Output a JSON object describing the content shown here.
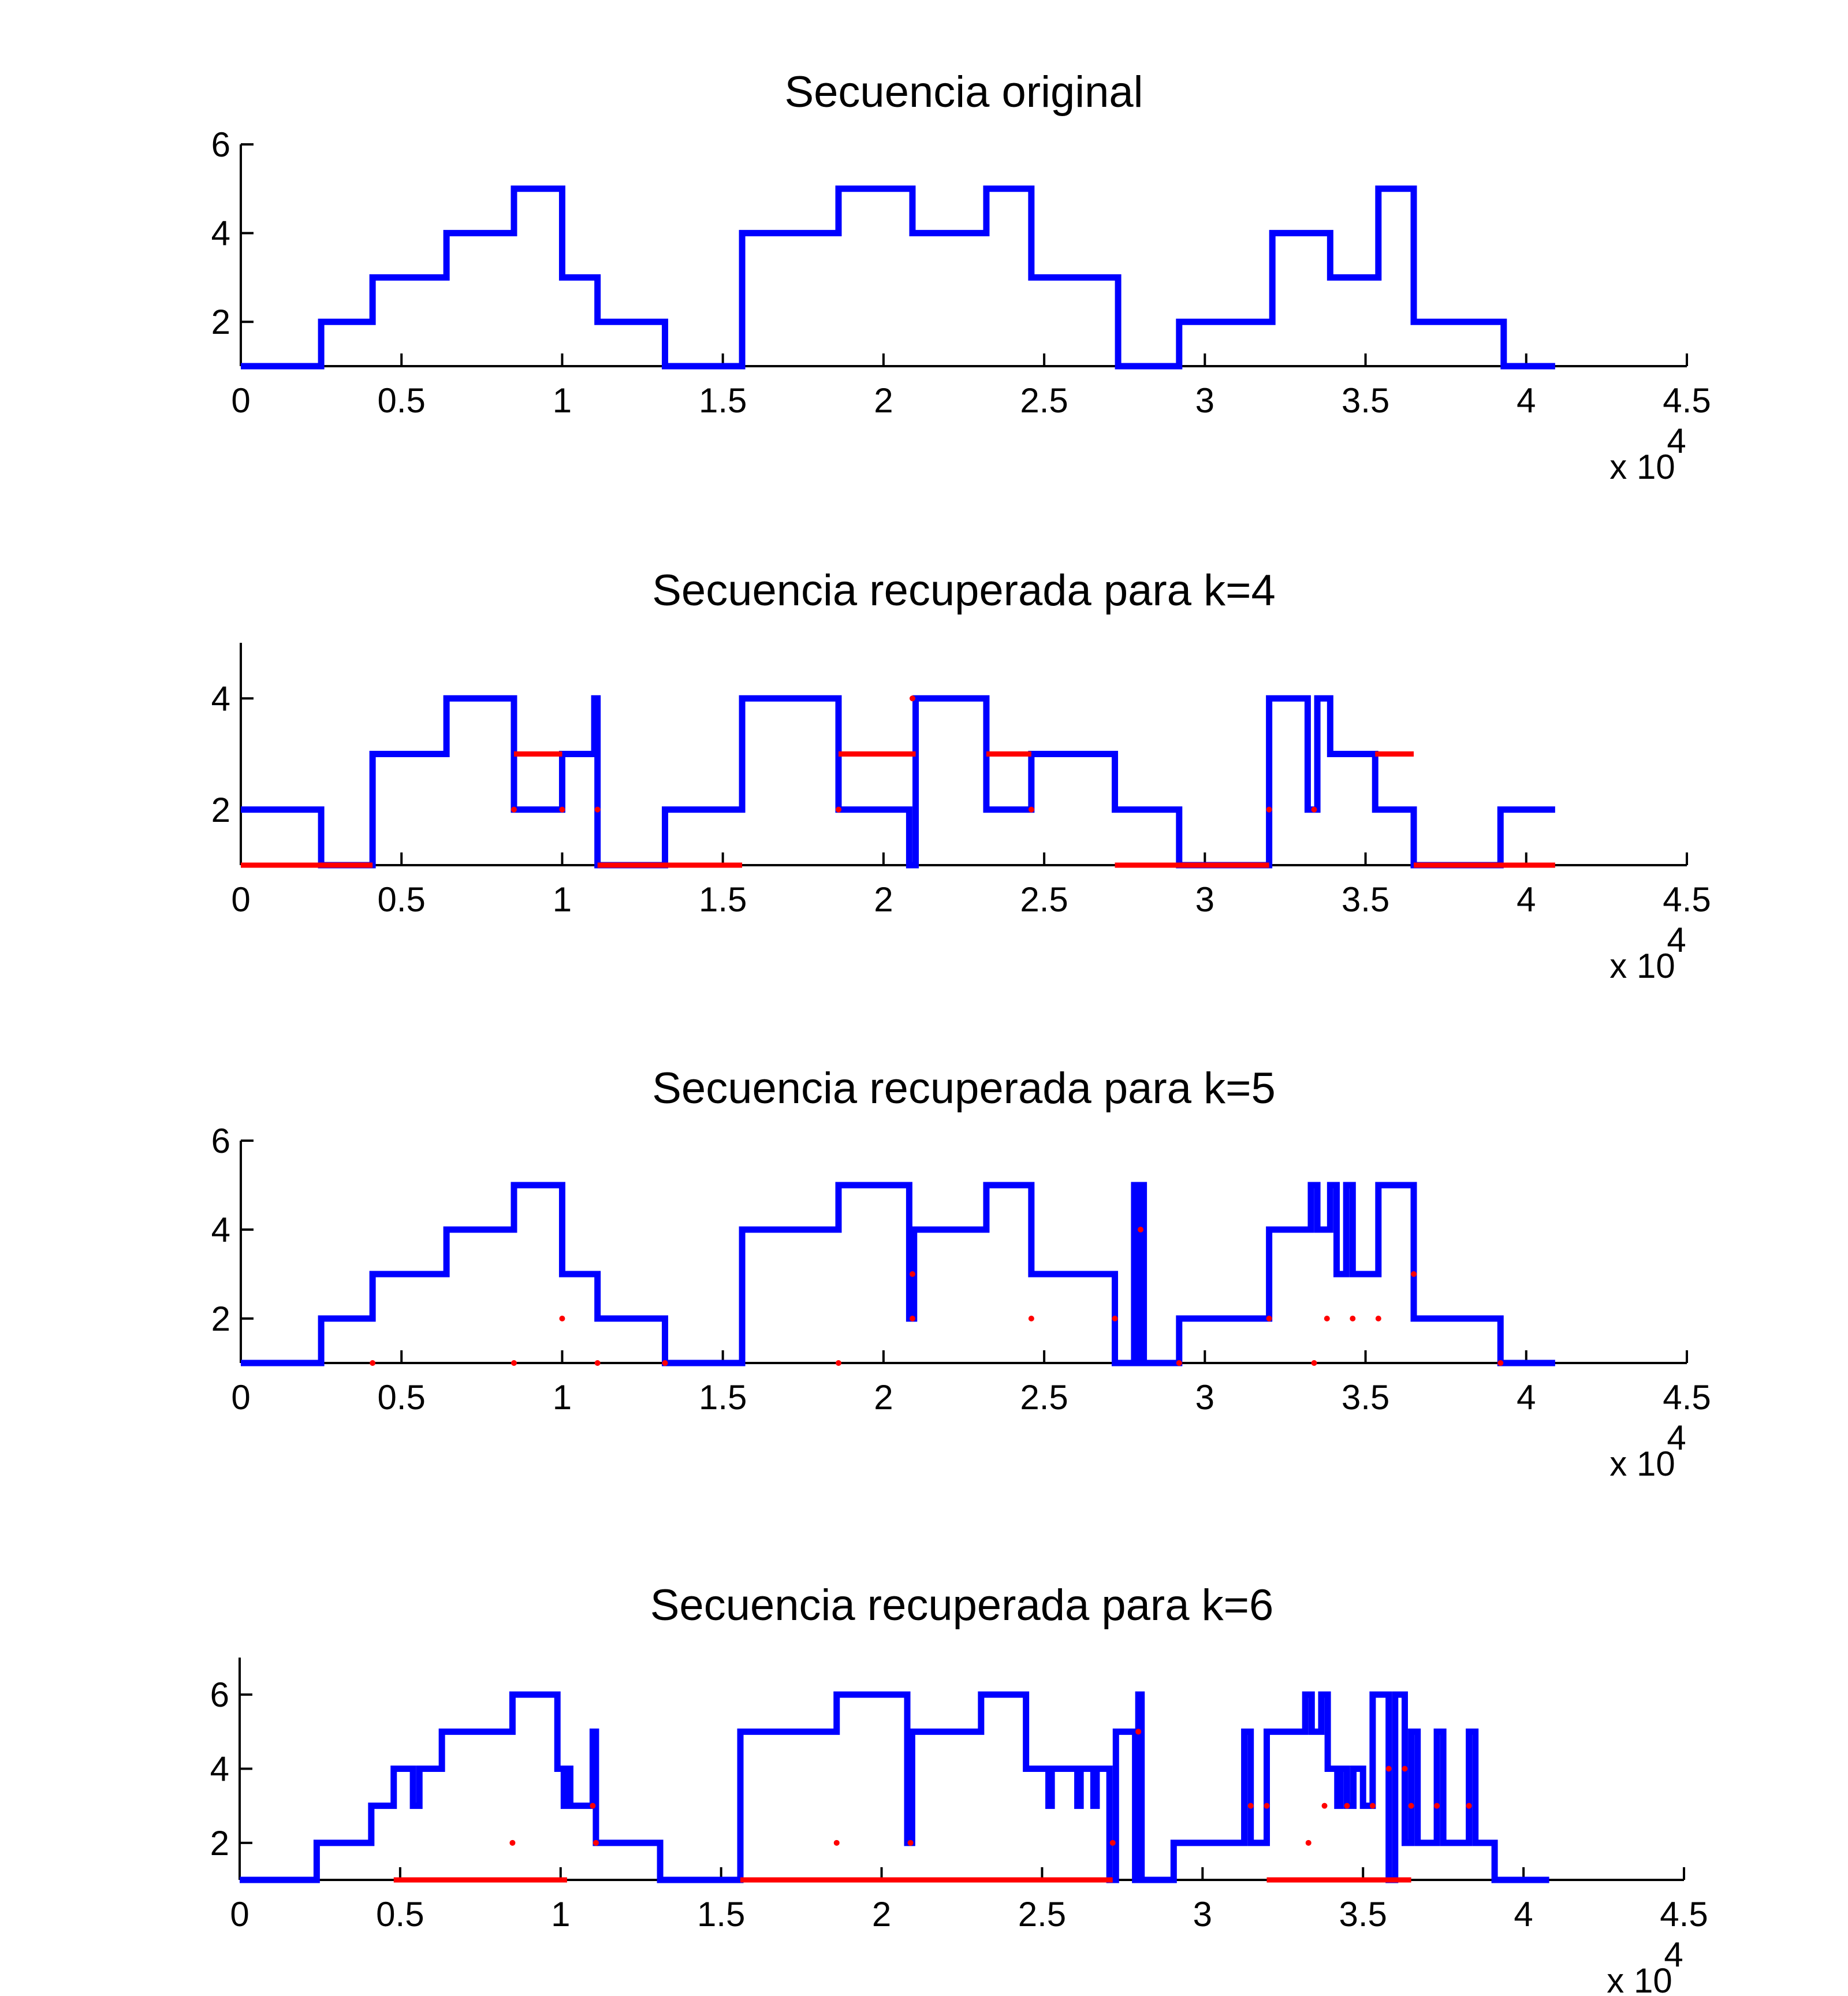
{
  "figure": {
    "background": "#ffffff",
    "axis_color": "#000000"
  },
  "chart_data": [
    {
      "type": "line",
      "title": "Secuencia original",
      "xlabel": "",
      "ylabel": "",
      "x_multiplier_label": {
        "base": "x 10",
        "exponent": "4"
      },
      "xlim": [
        0,
        45000
      ],
      "ylim": [
        1,
        6
      ],
      "xticks": [
        0,
        5000,
        10000,
        15000,
        20000,
        25000,
        30000,
        35000,
        40000,
        45000
      ],
      "xtick_labels": [
        "0",
        "0.5",
        "1",
        "1.5",
        "2",
        "2.5",
        "3",
        "3.5",
        "4",
        "4.5"
      ],
      "yticks": [
        2,
        4,
        6
      ],
      "ytick_labels": [
        "2",
        "4",
        "6"
      ],
      "grid": false,
      "series": [
        {
          "color": "#0000ff",
          "style": "step",
          "x": [
            0,
            2500,
            4100,
            6400,
            8500,
            10000,
            11100,
            13200,
            15600,
            18600,
            20900,
            23200,
            24600,
            27300,
            29200,
            32100,
            33900,
            35400,
            36500,
            39300,
            40900
          ],
          "y": [
            1,
            2,
            3,
            4,
            5,
            3,
            2,
            1,
            4,
            5,
            4,
            5,
            3,
            1,
            2,
            4,
            3,
            5,
            2,
            1,
            1
          ]
        }
      ],
      "markers": []
    },
    {
      "type": "line",
      "title": "Secuencia recuperada para k=4",
      "xlabel": "",
      "ylabel": "",
      "x_multiplier_label": {
        "base": "x 10",
        "exponent": "4"
      },
      "xlim": [
        0,
        45000
      ],
      "ylim": [
        1,
        5
      ],
      "xticks": [
        0,
        5000,
        10000,
        15000,
        20000,
        25000,
        30000,
        35000,
        40000,
        45000
      ],
      "xtick_labels": [
        "0",
        "0.5",
        "1",
        "1.5",
        "2",
        "2.5",
        "3",
        "3.5",
        "4",
        "4.5"
      ],
      "yticks": [
        2,
        4
      ],
      "ytick_labels": [
        "2",
        "4"
      ],
      "grid": false,
      "series": [
        {
          "color": "#0000ff",
          "style": "step",
          "x": [
            0,
            2500,
            4100,
            6400,
            8500,
            10000,
            11000,
            11100,
            13200,
            15600,
            18600,
            20800,
            21000,
            23200,
            24600,
            27200,
            29200,
            32000,
            33200,
            33500,
            33900,
            35300,
            36500,
            39200,
            40900
          ],
          "y": [
            2,
            1,
            3,
            4,
            2,
            3,
            4,
            1,
            2,
            4,
            2,
            1,
            4,
            2,
            3,
            2,
            1,
            4,
            2,
            4,
            3,
            2,
            1,
            2,
            2
          ]
        }
      ],
      "markers": [
        {
          "color": "#ff0000",
          "x": [
            0,
            4100
          ],
          "y": [
            1,
            1
          ],
          "segment": true
        },
        {
          "color": "#ff0000",
          "x": [
            11100,
            15600
          ],
          "y": [
            1,
            1
          ],
          "segment": true
        },
        {
          "color": "#ff0000",
          "x": [
            27200,
            32000
          ],
          "y": [
            1,
            1
          ],
          "segment": true
        },
        {
          "color": "#ff0000",
          "x": [
            36500,
            40900
          ],
          "y": [
            1,
            1
          ],
          "segment": true
        },
        {
          "color": "#ff0000",
          "x": [
            8500,
            10000
          ],
          "y": [
            3,
            3
          ],
          "segment": true
        },
        {
          "color": "#ff0000",
          "x": [
            18600,
            21000
          ],
          "y": [
            3,
            3
          ],
          "segment": true
        },
        {
          "color": "#ff0000",
          "x": [
            23200,
            24600
          ],
          "y": [
            3,
            3
          ],
          "segment": true
        },
        {
          "color": "#ff0000",
          "x": [
            35300,
            36500
          ],
          "y": [
            3,
            3
          ],
          "segment": true
        },
        {
          "color": "#ff0000",
          "x": [
            8500,
            10000,
            11100,
            18600,
            24600,
            32000,
            33400
          ],
          "y": [
            2,
            2,
            2,
            2,
            2,
            2,
            2
          ],
          "segment": false
        },
        {
          "color": "#ff0000",
          "x": [
            20900
          ],
          "y": [
            4
          ],
          "segment": false
        }
      ]
    },
    {
      "type": "line",
      "title": "Secuencia recuperada para k=5",
      "xlabel": "",
      "ylabel": "",
      "x_multiplier_label": {
        "base": "x 10",
        "exponent": "4"
      },
      "xlim": [
        0,
        45000
      ],
      "ylim": [
        1,
        6
      ],
      "xticks": [
        0,
        5000,
        10000,
        15000,
        20000,
        25000,
        30000,
        35000,
        40000,
        45000
      ],
      "xtick_labels": [
        "0",
        "0.5",
        "1",
        "1.5",
        "2",
        "2.5",
        "3",
        "3.5",
        "4",
        "4.5"
      ],
      "yticks": [
        2,
        4,
        6
      ],
      "ytick_labels": [
        "2",
        "4",
        "6"
      ],
      "grid": false,
      "series": [
        {
          "color": "#0000ff",
          "style": "step",
          "x": [
            0,
            2500,
            4100,
            6400,
            8500,
            10000,
            11100,
            13200,
            15600,
            18600,
            20800,
            20950,
            23200,
            24600,
            27200,
            27800,
            27900,
            28000,
            28100,
            28200,
            29200,
            32000,
            33300,
            33500,
            33900,
            34100,
            34400,
            34600,
            35400,
            36500,
            39200,
            40900
          ],
          "y": [
            1,
            2,
            3,
            4,
            5,
            3,
            2,
            1,
            4,
            5,
            2,
            4,
            5,
            3,
            1,
            5,
            1,
            5,
            1,
            1,
            2,
            4,
            5,
            4,
            5,
            3,
            5,
            3,
            5,
            2,
            1,
            1
          ]
        }
      ],
      "markers": [
        {
          "color": "#ff0000",
          "x": [
            10000,
            20900,
            24600,
            27200,
            32000,
            33800,
            34600,
            35400
          ],
          "y": [
            2,
            2,
            2,
            2,
            2,
            2,
            2,
            2
          ],
          "segment": false
        },
        {
          "color": "#ff0000",
          "x": [
            20900,
            36500
          ],
          "y": [
            3,
            3
          ],
          "segment": false
        },
        {
          "color": "#ff0000",
          "x": [
            28000
          ],
          "y": [
            4
          ],
          "segment": false
        },
        {
          "color": "#ff0000",
          "x": [
            4100,
            8500,
            11100,
            13200,
            18600,
            29200,
            33400,
            39200
          ],
          "y": [
            1,
            1,
            1,
            1,
            1,
            1,
            1,
            1
          ],
          "segment": false
        }
      ]
    },
    {
      "type": "line",
      "title": "Secuencia recuperada para k=6",
      "xlabel": "",
      "ylabel": "",
      "x_multiplier_label": {
        "base": "x 10",
        "exponent": "4"
      },
      "xlim": [
        0,
        45000
      ],
      "ylim": [
        1,
        7
      ],
      "xticks": [
        0,
        5000,
        10000,
        15000,
        20000,
        25000,
        30000,
        35000,
        40000,
        45000
      ],
      "xtick_labels": [
        "0",
        "0.5",
        "1",
        "1.5",
        "2",
        "2.5",
        "3",
        "3.5",
        "4",
        "4.5"
      ],
      "yticks": [
        2,
        4,
        6
      ],
      "ytick_labels": [
        "2",
        "4",
        "6"
      ],
      "grid": false,
      "series": [
        {
          "color": "#0000ff",
          "style": "step",
          "x": [
            0,
            2400,
            4100,
            4800,
            5400,
            5600,
            6300,
            8500,
            9900,
            10100,
            10200,
            10300,
            11000,
            11100,
            13100,
            15600,
            18600,
            20800,
            20950,
            23100,
            24500,
            25200,
            25300,
            26100,
            26200,
            26600,
            26700,
            27100,
            27300,
            27900,
            28000,
            28100,
            29100,
            31300,
            31500,
            32000,
            33200,
            33400,
            33700,
            33900,
            34200,
            34300,
            34500,
            34700,
            35000,
            35300,
            35800,
            36000,
            36300,
            36500,
            36700,
            37300,
            37500,
            38300,
            38500,
            39100,
            40800
          ],
          "y": [
            1,
            2,
            3,
            4,
            3,
            4,
            5,
            6,
            4,
            3,
            4,
            3,
            5,
            2,
            1,
            5,
            6,
            2,
            5,
            6,
            4,
            3,
            4,
            3,
            4,
            3,
            4,
            1,
            5,
            1,
            6,
            1,
            2,
            5,
            2,
            5,
            6,
            5,
            6,
            4,
            3,
            4,
            3,
            4,
            3,
            6,
            1,
            6,
            2,
            5,
            2,
            5,
            2,
            5,
            2,
            1,
            1
          ]
        }
      ],
      "markers": [
        {
          "color": "#ff0000",
          "x": [
            4800,
            10200
          ],
          "y": [
            1,
            1
          ],
          "segment": true
        },
        {
          "color": "#ff0000",
          "x": [
            15600,
            27200
          ],
          "y": [
            1,
            1
          ],
          "segment": true
        },
        {
          "color": "#ff0000",
          "x": [
            32000,
            36500
          ],
          "y": [
            1,
            1
          ],
          "segment": true
        },
        {
          "color": "#ff0000",
          "x": [
            8500,
            11100,
            18600,
            20900,
            27200,
            33300
          ],
          "y": [
            2,
            2,
            2,
            2,
            2,
            2
          ],
          "segment": false
        },
        {
          "color": "#ff0000",
          "x": [
            11000,
            31500,
            32000,
            33800,
            34500,
            35300,
            36500,
            37300,
            38300
          ],
          "y": [
            3,
            3,
            3,
            3,
            3,
            3,
            3,
            3,
            3
          ],
          "segment": false
        },
        {
          "color": "#ff0000",
          "x": [
            35800,
            36300
          ],
          "y": [
            4,
            4
          ],
          "segment": false
        },
        {
          "color": "#ff0000",
          "x": [
            28000
          ],
          "y": [
            5
          ],
          "segment": false
        }
      ]
    }
  ]
}
